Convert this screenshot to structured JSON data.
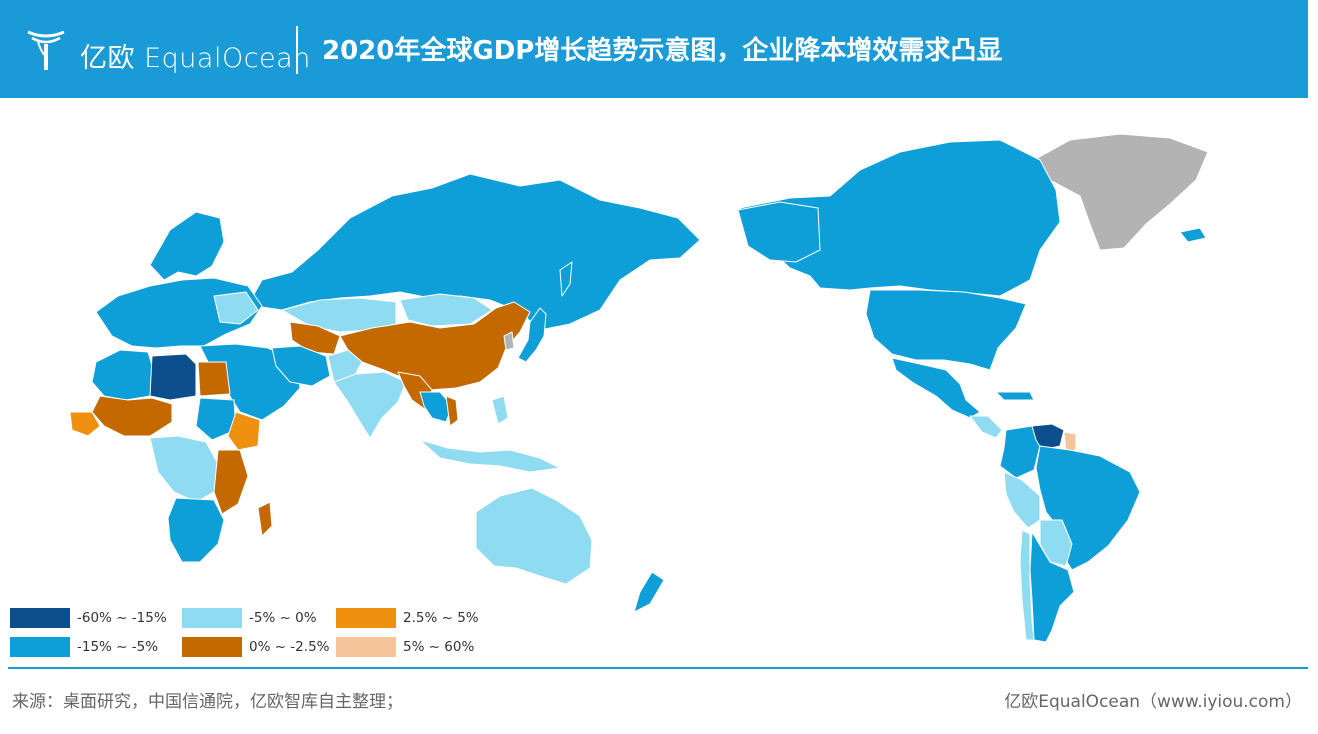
{
  "header": {
    "brand": "亿欧 EqualOcean",
    "title": "2020年全球GDP增长趋势示意图，企业降本增效需求凸显",
    "background": "#1a9ad6"
  },
  "legend": {
    "items": [
      {
        "label": "-60% ~ -15%",
        "color": "#0d4f8c"
      },
      {
        "label": "-5% ~ 0%",
        "color": "#8fdbf1"
      },
      {
        "label": "2.5% ~ 5%",
        "color": "#f0900f"
      },
      {
        "label": "-15% ~ -5%",
        "color": "#0f9fd8"
      },
      {
        "label": "0% ~ -2.5%",
        "color": "#c46800"
      },
      {
        "label": "5% ~ 60%",
        "color": "#f5c49a"
      }
    ],
    "no_data_color": "#b3b3b3"
  },
  "footer": {
    "source": "来源：桌面研究，中国信通院，亿欧智库自主整理；",
    "credit": "亿欧EqualOcean（www.iyiou.com）"
  }
}
